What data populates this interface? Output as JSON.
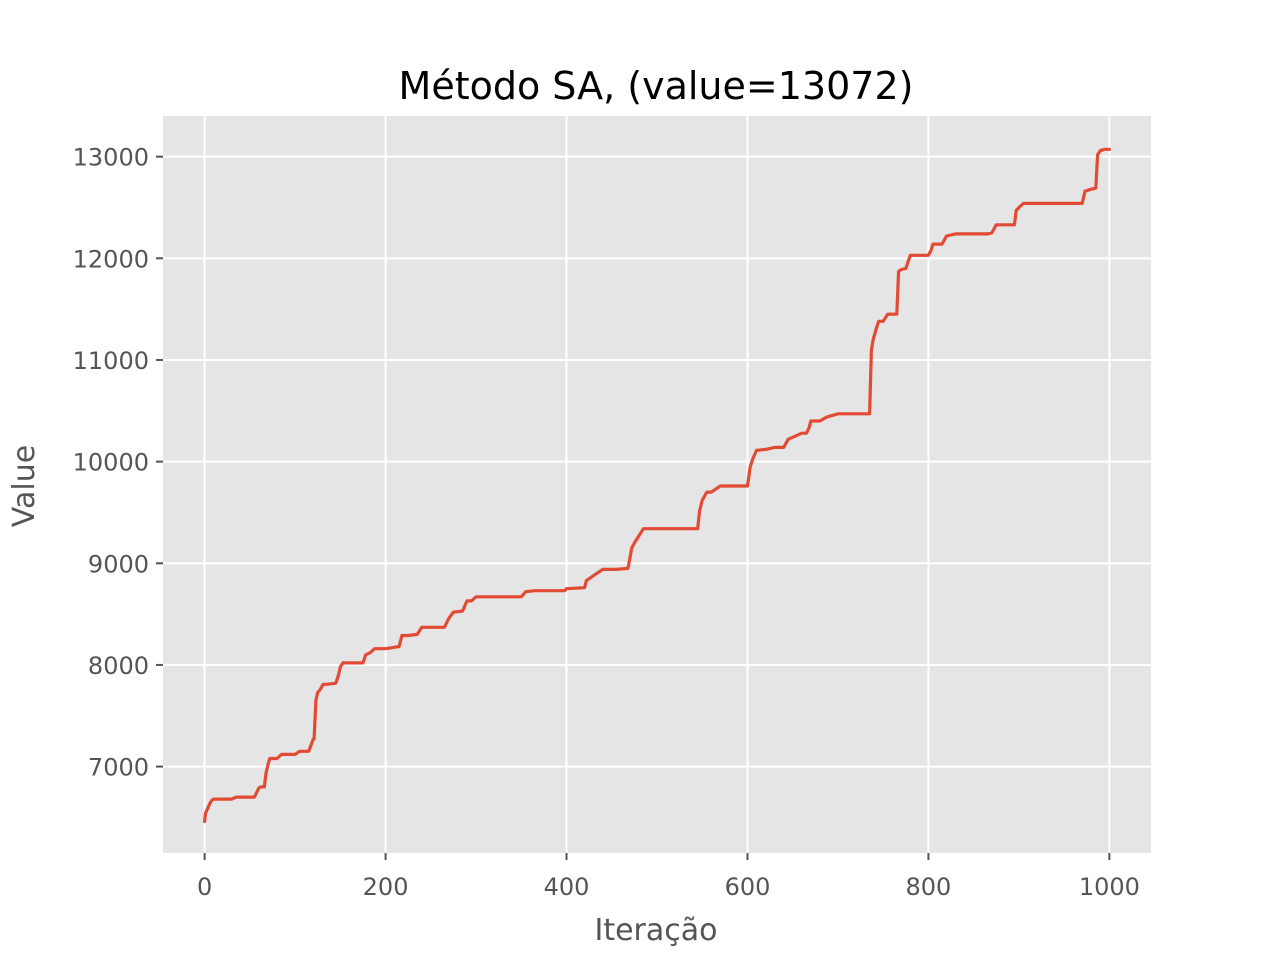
{
  "chart_data": {
    "type": "line",
    "title": "Método SA, (value=13072)",
    "xlabel": "Iteração",
    "ylabel": "Value",
    "xlim": [
      -46,
      1046
    ],
    "ylim": [
      6150,
      13400
    ],
    "xticks": [
      0,
      200,
      400,
      600,
      800,
      1000
    ],
    "xtick_labels": [
      "0",
      "200",
      "400",
      "600",
      "800",
      "1000"
    ],
    "yticks": [
      7000,
      8000,
      9000,
      10000,
      11000,
      12000,
      13000
    ],
    "ytick_labels": [
      "7000",
      "8000",
      "9000",
      "10000",
      "11000",
      "12000",
      "13000"
    ],
    "grid": true,
    "background": "#e5e5e5",
    "grid_color": "#ffffff",
    "series": [
      {
        "color": "#e24a33",
        "x": [
          0,
          1,
          2,
          4,
          6,
          8,
          10,
          15,
          25,
          30,
          35,
          40,
          55,
          60,
          62,
          66,
          68,
          70,
          72,
          75,
          80,
          85,
          100,
          105,
          115,
          118,
          120,
          121,
          123,
          125,
          128,
          131,
          135,
          145,
          148,
          150,
          153,
          160,
          175,
          178,
          183,
          188,
          200,
          215,
          218,
          225,
          235,
          240,
          265,
          270,
          275,
          285,
          290,
          295,
          300,
          315,
          350,
          355,
          365,
          380,
          398,
          400,
          420,
          422,
          430,
          440,
          455,
          468,
          470,
          472,
          475,
          480,
          485,
          500,
          545,
          547,
          550,
          555,
          560,
          570,
          600,
          603,
          606,
          610,
          620,
          630,
          640,
          645,
          660,
          665,
          668,
          670,
          680,
          688,
          700,
          735,
          737,
          739,
          742,
          745,
          750,
          755,
          765,
          767,
          770,
          775,
          780,
          800,
          803,
          805,
          815,
          820,
          830,
          850,
          865,
          870,
          875,
          880,
          895,
          897,
          900,
          905,
          925,
          950,
          970,
          973,
          980,
          985,
          987,
          990,
          995,
          1000
        ],
        "y": [
          6460,
          6540,
          6560,
          6600,
          6640,
          6670,
          6680,
          6680,
          6680,
          6680,
          6700,
          6700,
          6700,
          6790,
          6800,
          6800,
          6940,
          7020,
          7080,
          7080,
          7080,
          7120,
          7120,
          7150,
          7150,
          7220,
          7270,
          7270,
          7650,
          7730,
          7760,
          7810,
          7810,
          7820,
          7900,
          7980,
          8020,
          8020,
          8020,
          8100,
          8120,
          8160,
          8160,
          8180,
          8290,
          8290,
          8300,
          8370,
          8370,
          8460,
          8520,
          8530,
          8630,
          8630,
          8670,
          8670,
          8670,
          8720,
          8730,
          8730,
          8730,
          8750,
          8760,
          8830,
          8880,
          8940,
          8940,
          8950,
          9050,
          9150,
          9200,
          9270,
          9340,
          9340,
          9340,
          9510,
          9620,
          9700,
          9700,
          9760,
          9760,
          9950,
          10030,
          10110,
          10120,
          10140,
          10140,
          10220,
          10280,
          10280,
          10330,
          10400,
          10400,
          10440,
          10470,
          10470,
          11100,
          11200,
          11300,
          11380,
          11380,
          11450,
          11450,
          11870,
          11890,
          11900,
          12030,
          12030,
          12080,
          12140,
          12140,
          12220,
          12240,
          12240,
          12240,
          12250,
          12330,
          12330,
          12330,
          12470,
          12500,
          12540,
          12540,
          12540,
          12540,
          12660,
          12680,
          12690,
          13020,
          13060,
          13072,
          13072
        ]
      }
    ]
  }
}
